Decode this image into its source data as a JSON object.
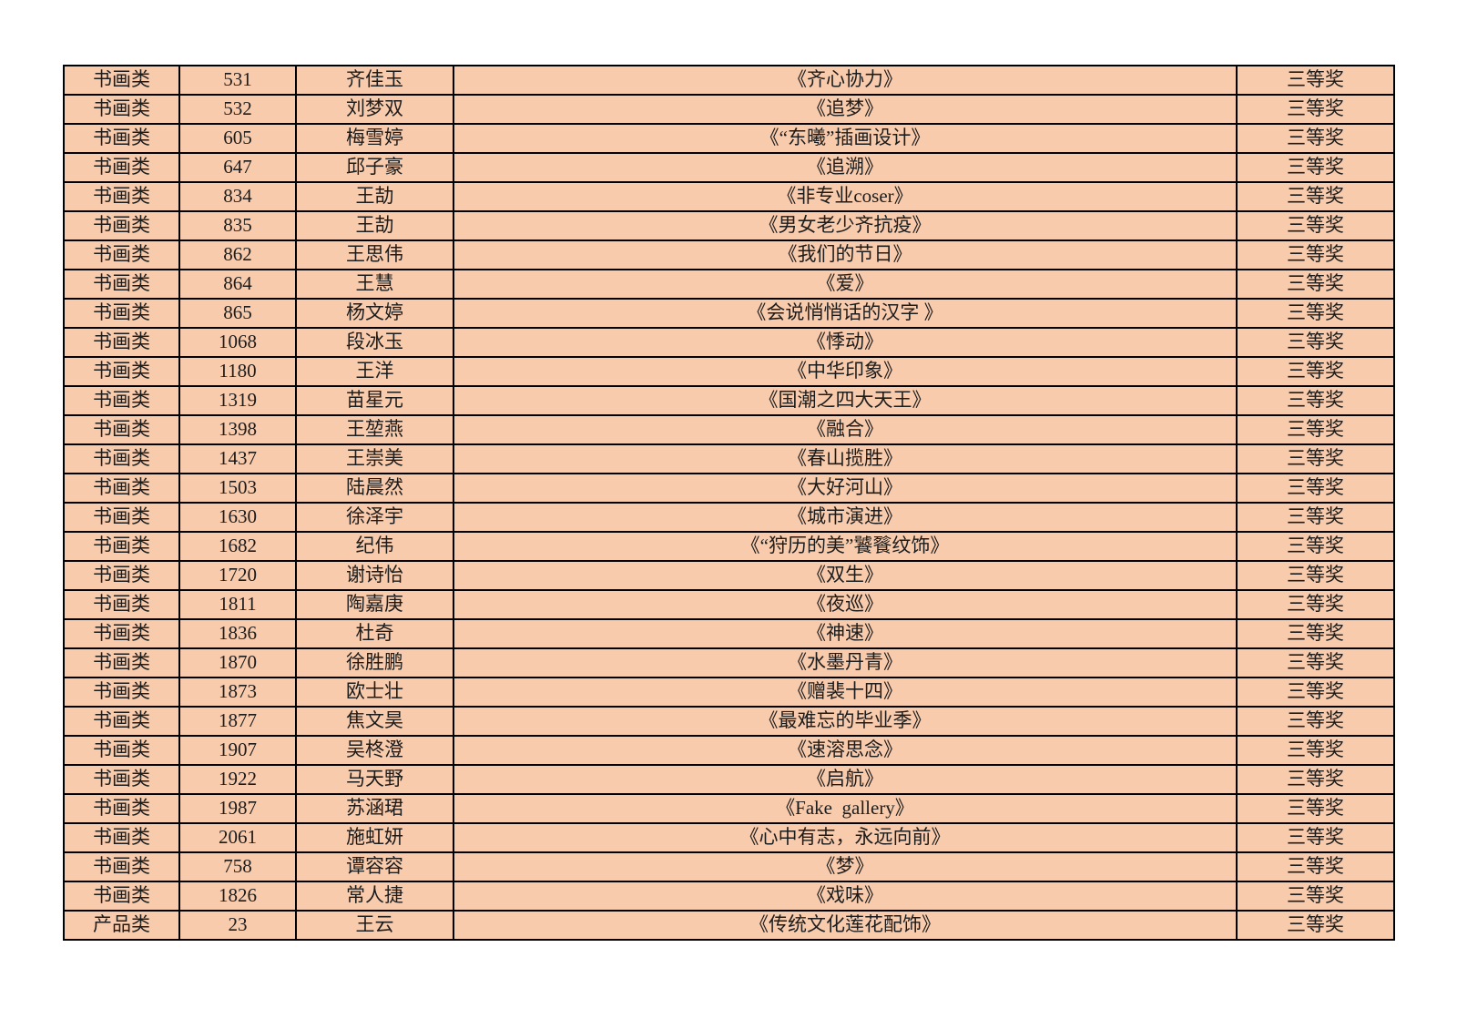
{
  "colors": {
    "page_bg": "#ffffff",
    "cell_bg": "#f8cbad",
    "border": "#000000",
    "text": "#1c1c1c"
  },
  "table": {
    "column_keys": [
      "category",
      "number",
      "name",
      "title",
      "award"
    ],
    "rows": [
      {
        "category": "书画类",
        "number": "531",
        "name": "齐佳玉",
        "title": "《齐心协力》",
        "award": "三等奖"
      },
      {
        "category": "书画类",
        "number": "532",
        "name": "刘梦双",
        "title": "《追梦》",
        "award": "三等奖"
      },
      {
        "category": "书画类",
        "number": "605",
        "name": "梅雪婷",
        "title": "《“东曦”插画设计》",
        "award": "三等奖"
      },
      {
        "category": "书画类",
        "number": "647",
        "name": "邱子豪",
        "title": "《追溯》",
        "award": "三等奖"
      },
      {
        "category": "书画类",
        "number": "834",
        "name": "王劼",
        "title": "《非专业coser》",
        "award": "三等奖"
      },
      {
        "category": "书画类",
        "number": "835",
        "name": "王劼",
        "title": "《男女老少齐抗疫》",
        "award": "三等奖"
      },
      {
        "category": "书画类",
        "number": "862",
        "name": "王思伟",
        "title": "《我们的节日》",
        "award": "三等奖"
      },
      {
        "category": "书画类",
        "number": "864",
        "name": "王慧",
        "title": "《爱》",
        "award": "三等奖"
      },
      {
        "category": "书画类",
        "number": "865",
        "name": "杨文婷",
        "title": "《会说悄悄话的汉字 》",
        "award": "三等奖"
      },
      {
        "category": "书画类",
        "number": "1068",
        "name": "段冰玉",
        "title": "《悸动》",
        "award": "三等奖"
      },
      {
        "category": "书画类",
        "number": "1180",
        "name": "王洋",
        "title": "《中华印象》",
        "award": "三等奖"
      },
      {
        "category": "书画类",
        "number": "1319",
        "name": "苗星元",
        "title": "《国潮之四大天王》",
        "award": "三等奖"
      },
      {
        "category": "书画类",
        "number": "1398",
        "name": "王堃燕",
        "title": "《融合》",
        "award": "三等奖"
      },
      {
        "category": "书画类",
        "number": "1437",
        "name": "王崇美",
        "title": "《春山揽胜》",
        "award": "三等奖"
      },
      {
        "category": "书画类",
        "number": "1503",
        "name": "陆晨然",
        "title": "《大好河山》",
        "award": "三等奖"
      },
      {
        "category": "书画类",
        "number": "1630",
        "name": "徐泽宇",
        "title": "《城市演进》",
        "award": "三等奖"
      },
      {
        "category": "书画类",
        "number": "1682",
        "name": "纪伟",
        "title": "《“狩历的美”饕餮纹饰》",
        "award": "三等奖"
      },
      {
        "category": "书画类",
        "number": "1720",
        "name": "谢诗怡",
        "title": "《双生》",
        "award": "三等奖"
      },
      {
        "category": "书画类",
        "number": "1811",
        "name": "陶嘉庚",
        "title": "《夜巡》",
        "award": "三等奖"
      },
      {
        "category": "书画类",
        "number": "1836",
        "name": "杜奇",
        "title": "《神速》",
        "award": "三等奖"
      },
      {
        "category": "书画类",
        "number": "1870",
        "name": "徐胜鹏",
        "title": "《水墨丹青》",
        "award": "三等奖"
      },
      {
        "category": "书画类",
        "number": "1873",
        "name": "欧士壮",
        "title": "《赠裴十四》",
        "award": "三等奖"
      },
      {
        "category": "书画类",
        "number": "1877",
        "name": "焦文昊",
        "title": "《最难忘的毕业季》",
        "award": "三等奖"
      },
      {
        "category": "书画类",
        "number": "1907",
        "name": "吴柊澄",
        "title": "《速溶思念》",
        "award": "三等奖"
      },
      {
        "category": "书画类",
        "number": "1922",
        "name": "马天野",
        "title": "《启航》",
        "award": "三等奖"
      },
      {
        "category": "书画类",
        "number": "1987",
        "name": "苏涵珺",
        "title": "《Fake  gallery》",
        "award": "三等奖"
      },
      {
        "category": "书画类",
        "number": "2061",
        "name": "施虹妍",
        "title": "《心中有志，永远向前》",
        "award": "三等奖"
      },
      {
        "category": "书画类",
        "number": "758",
        "name": "谭容容",
        "title": "《梦》",
        "award": "三等奖"
      },
      {
        "category": "书画类",
        "number": "1826",
        "name": "常人捷",
        "title": "《戏味》",
        "award": "三等奖"
      },
      {
        "category": "产品类",
        "number": "23",
        "name": "王云",
        "title": "《传统文化莲花配饰》",
        "award": "三等奖"
      }
    ]
  }
}
